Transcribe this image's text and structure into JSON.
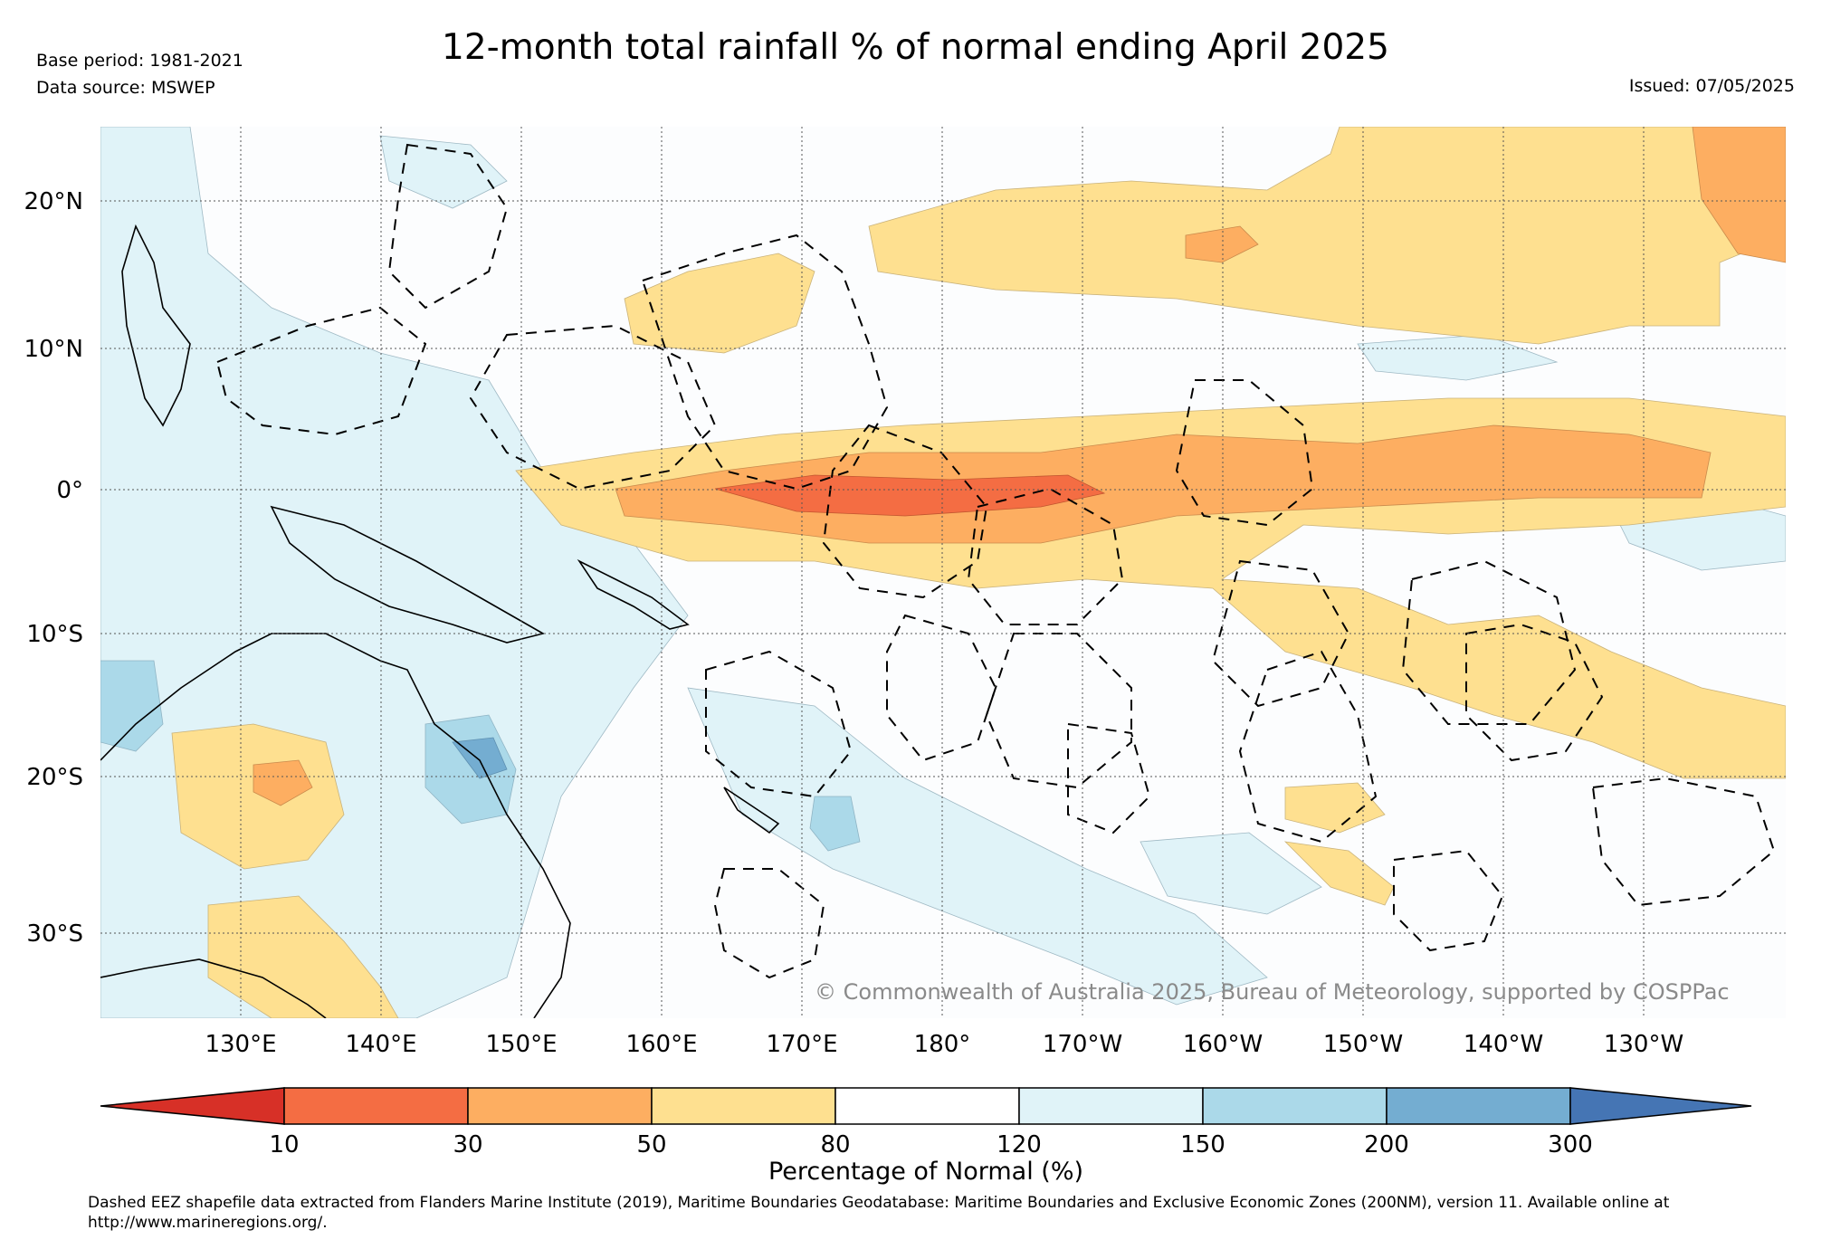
{
  "header": {
    "title": "12-month total rainfall % of normal ending April 2025",
    "base_period": "Base period: 1981-2021",
    "data_source": "Data source: MSWEP",
    "issued": "Issued: 07/05/2025"
  },
  "map": {
    "lat_labels": [
      "20°N",
      "10°N",
      "0°",
      "10°S",
      "20°S",
      "30°S"
    ],
    "lon_labels": [
      "130°E",
      "140°E",
      "150°E",
      "160°E",
      "170°E",
      "180°",
      "170°W",
      "160°W",
      "150°W",
      "140°W",
      "130°W"
    ],
    "copyright": "© Commonwealth of Australia 2025, Bureau of Meteorology, supported by COSPPac",
    "eez_boundaries": "dashed",
    "ocean_color": "#fcfdfe"
  },
  "colorbar": {
    "title": "Percentage of Normal (%)",
    "ticks": [
      "10",
      "30",
      "50",
      "80",
      "120",
      "150",
      "200",
      "300"
    ],
    "colors": {
      "lt10": "#d73027",
      "10-30": "#f46d43",
      "30-50": "#fdae61",
      "50-80": "#fee090",
      "80-120": "#ffffff",
      "120-150": "#e0f3f8",
      "150-200": "#abd9e9",
      "200-300": "#74add1",
      "gt300": "#4575b4"
    }
  },
  "footnote": "Dashed EEZ shapefile data extracted from Flanders Marine Institute (2019), Maritime Boundaries Geodatabase: Maritime Boundaries and Exclusive Economic Zones (200NM), version 11. Available online at http://www.marineregions.org/."
}
